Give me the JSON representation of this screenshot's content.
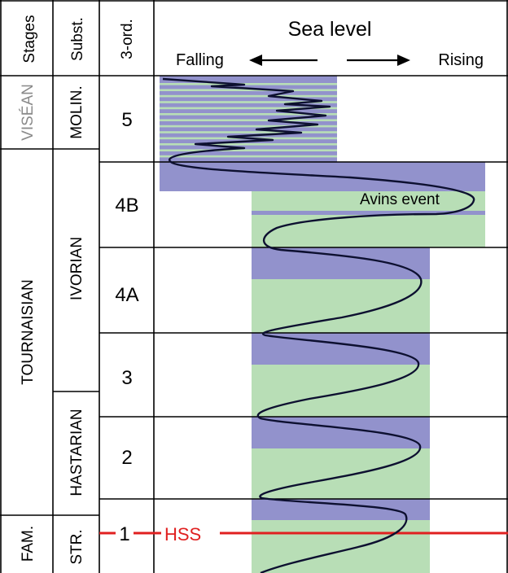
{
  "header": {
    "stages": "Stages",
    "substages": "Subst.",
    "third_order": "3-ord.",
    "sea_level": "Sea level",
    "falling": "Falling",
    "rising": "Rising"
  },
  "stages": {
    "visean": "VISÉAN",
    "tournaisian": "TOURNAISIAN",
    "famennian": "FAM."
  },
  "substages": {
    "molinacian": "MOLIN.",
    "ivorian": "IVORIAN",
    "hastarian": "HASTARIAN",
    "strunian": "STR."
  },
  "sequences": {
    "s5": "5",
    "s4b": "4B",
    "s4a": "4A",
    "s3": "3",
    "s2": "2",
    "s1": "1"
  },
  "annotations": {
    "avins": "Avins event",
    "hss": "HSS"
  },
  "colors": {
    "transgressive": "#9292cc",
    "highstand": "#b8deb6",
    "visean_text": "#8a8a8a",
    "hss_line": "#e02020",
    "curve": "#0d1030"
  }
}
